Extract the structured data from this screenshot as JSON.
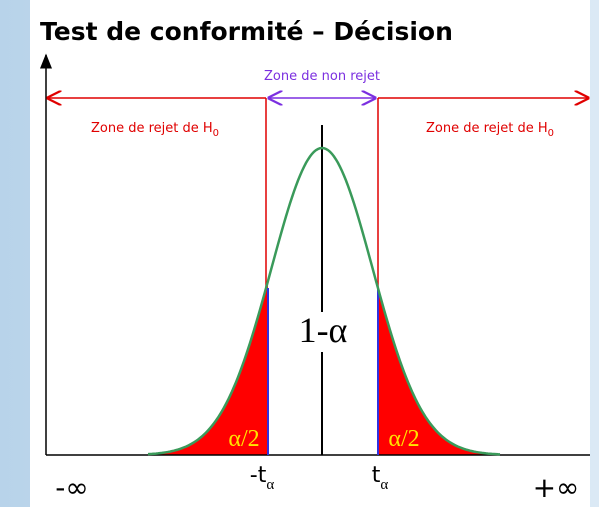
{
  "title": "Test de conformité – Décision",
  "zone_accept": "Zone de non rejet",
  "zone_reject_left": {
    "text": "Zone de rejet de H",
    "sub": "0"
  },
  "zone_reject_right": {
    "text": "Zone de rejet de H",
    "sub": "0"
  },
  "center_label": "1-α",
  "tail_left": "α/2",
  "tail_right": "α/2",
  "x_labels": {
    "minus_inf": "-∞",
    "minus_t": {
      "text": "-t",
      "sub": "α"
    },
    "plus_t": {
      "text": "t",
      "sub": "α"
    },
    "plus_inf": "+∞"
  }
}
